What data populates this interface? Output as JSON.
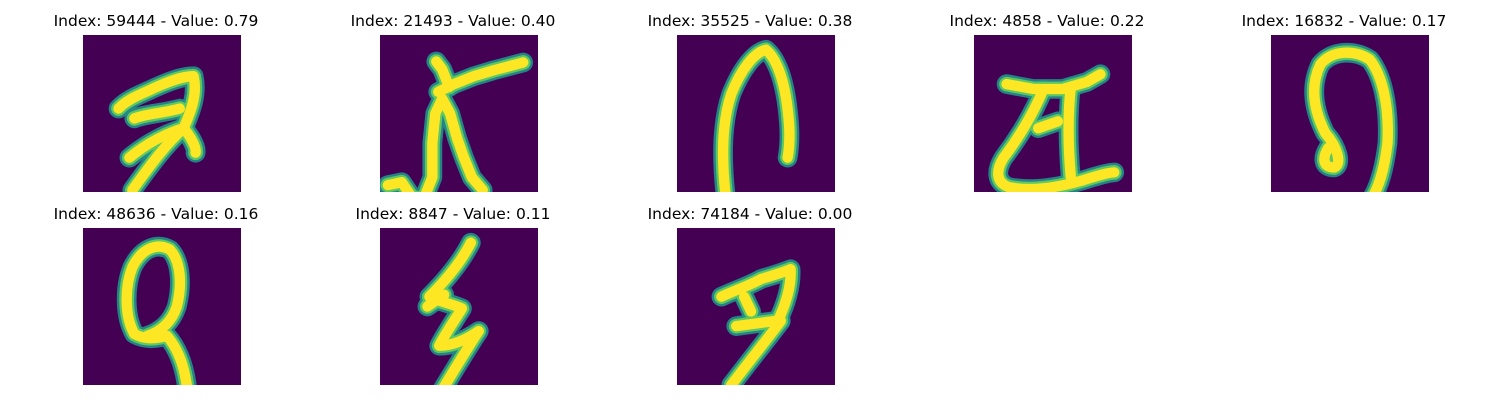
{
  "colors": {
    "background": "#440154",
    "stroke_edge": "#21918c",
    "stroke_mid": "#5ec962",
    "stroke_core": "#fde725"
  },
  "panels": [
    {
      "title": "Index: 59444 - Value: 0.79",
      "strokes": [
        "M 3.6 7.5 C 4.5 6.5 6 6 7 5.5 C 8.5 4.8 10 4.2 11.2 4.2 C 11.6 6 11 7.6 10.2 9.5",
        "M 4.7 12.5 C 6.5 11 8.5 10 10.2 9.5 C 11 10.5 11.5 11.5 11.4 12",
        "M 10.2 9.5 C 8.5 11 7 13 5 15.8",
        "M 5.2 8.5 C 6.5 8 8 8 9.8 7.5"
      ]
    },
    {
      "title": "Index: 21493 - Value: 0.40",
      "strokes": [
        "M 0.8 15.3 L 2.2 15.0 L 3.2 16.5 L 4.4 16.8 L 5.3 14.5 L 5.3 11.0 L 5.6 8.0 L 6.3 6.5 L 7.1 8.0 L 7.8 10.5 L 8.5 12.5 L 9.3 14.5 L 10.4 15.8",
        "M 5.9 5.8 L 7.5 5.0 L 9.5 4.2 L 11.5 3.6 L 14.5 2.8",
        "M 7.0 5.3 L 6.3 3.5 L 5.7 2.7"
      ]
    },
    {
      "title": "Index: 35525 - Value: 0.38",
      "strokes": [
        "M 5.0 17.0 C 4.5 13 4.5 9 5.5 6 C 6.5 3.5 7.8 1.8 9.0 1.5 C 10.2 2.5 11.0 5 11.3 8.5 C 11.5 10.5 11.3 12 11.2 12.5"
      ]
    },
    {
      "title": "Index: 4858 - Value: 0.22",
      "strokes": [
        "M 3.3 5.0 L 6.0 5.5 L 9.0 5.5 L 11.4 4.8 L 12.8 4.0",
        "M 7.0 5.6 C 6.0 8 4.5 10.5 3.0 12.5 C 2.2 13.8 2.2 15 3.5 15.5 C 6 16 9 15.5 12 14.5 C 13 14.2 13.8 14.0 14.2 14.0",
        "M 9.8 5.3 C 9.5 8 9.5 11 9.8 14.5",
        "M 6.5 9.5 L 8.5 8.8"
      ]
    },
    {
      "title": "Index: 16832 - Value: 0.17",
      "strokes": [
        "M 5.8 11.5 C 5.2 12.5 5.2 13.5 6.4 13.5 C 7.2 13.2 6.8 11.5 5.5 10 C 4.5 8 3.8 5.5 5.0 3.0 C 6.2 1.5 8.5 1.5 10.0 2.5 C 11.2 4 12.0 7 11.8 11 C 11.5 13.5 11.0 15.5 10.0 17.0"
      ]
    },
    {
      "title": "Index: 48636 - Value: 0.16",
      "strokes": [
        "M 6.5 11.0 C 8 10.5 9 9.5 9.5 8 C 10 6 10 3.5 8.8 2.2 C 7.5 1.5 6 2 5.0 4 C 4.2 6 4.2 9 5.2 10.8 C 6.5 11.5 7.5 11.2 8.5 11 C 9.8 12.5 10.3 14.5 10.5 16.0"
      ]
    },
    {
      "title": "Index: 8847 - Value: 0.11",
      "strokes": [
        "M 9.2 1.5 C 8.2 3.5 6.5 5.5 5.0 7.0 C 6.0 7.5 7.5 7.8 8.3 8.2 C 7.5 9.5 6.6 10.8 6.0 12.0 C 7.5 12 9.0 11.2 10.0 10.5 C 9.0 12 7.5 14.5 6.0 17.0",
        "M 4.8 8.0 L 6.5 6.8"
      ]
    },
    {
      "title": "Index: 74184 - Value: 0.00",
      "strokes": [
        "M 4.5 7.0 C 6 6.3 7.5 5.8 8.5 5.2 C 9.8 4.8 10.8 4.5 11.5 4.2 C 11.6 6 11 7.8 10.2 9.5",
        "M 6.0 10.0 C 7.5 9.8 9 9.6 10.5 9.4",
        "M 10.5 9.5 C 9 11.5 7.0 14.0 5.5 16.0",
        "M 6.8 7.0 L 7.5 8.5"
      ]
    }
  ]
}
